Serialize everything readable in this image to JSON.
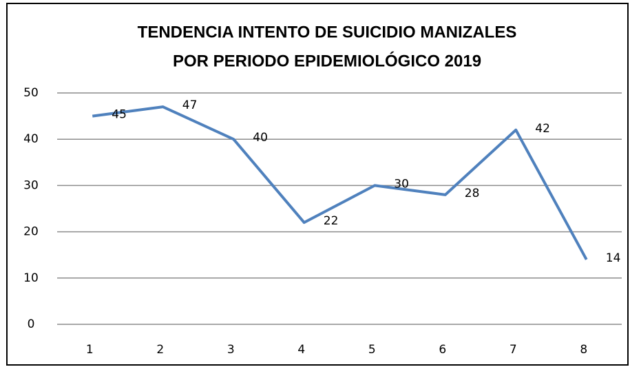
{
  "chart_data": {
    "type": "line",
    "title": [
      "TENDENCIA INTENTO DE SUICIDIO MANIZALES",
      "POR PERIODO EPIDEMIOLÓGICO 2019"
    ],
    "categories": [
      "1",
      "2",
      "3",
      "4",
      "5",
      "6",
      "7",
      "8"
    ],
    "values": [
      45,
      47,
      40,
      22,
      30,
      28,
      42,
      14
    ],
    "color": "#4f81bd",
    "ylim": [
      0,
      50
    ],
    "yticks": [
      0,
      10,
      20,
      30,
      40,
      50
    ],
    "grid": true
  }
}
